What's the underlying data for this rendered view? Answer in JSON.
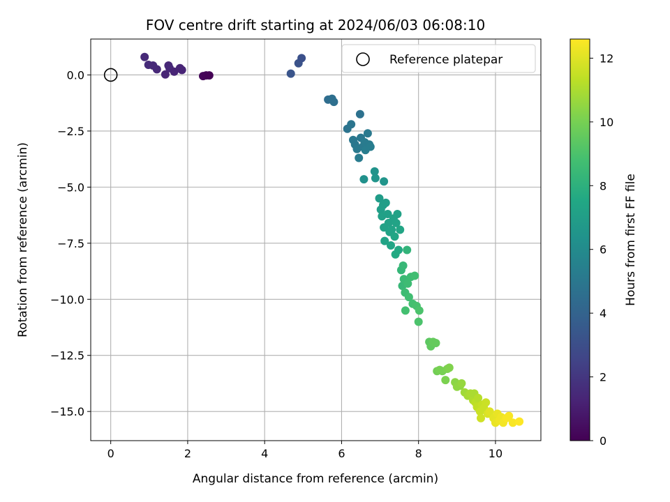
{
  "chart_data": {
    "type": "scatter",
    "title": "FOV centre drift starting at 2024/06/03 06:08:10",
    "xlabel": "Angular distance from reference (arcmin)",
    "ylabel": "Rotation from reference (arcmin)",
    "xlim": [
      -0.52,
      11.18
    ],
    "ylim": [
      -16.3,
      1.6
    ],
    "xticks": [
      0,
      2,
      4,
      6,
      8,
      10
    ],
    "xtick_labels": [
      "0",
      "2",
      "4",
      "6",
      "8",
      "10"
    ],
    "yticks": [
      0.0,
      -2.5,
      -5.0,
      -7.5,
      -10.0,
      -12.5,
      -15.0
    ],
    "ytick_labels": [
      "0.0",
      "−2.5",
      "−5.0",
      "−7.5",
      "−10.0",
      "−12.5",
      "−15.0"
    ],
    "grid": true,
    "legend": {
      "placement": "top-right",
      "entries": [
        "Reference platepar"
      ]
    },
    "colorbar": {
      "label": "Hours from first FF file",
      "colormap": "viridis",
      "range": [
        0,
        12.6
      ],
      "ticks": [
        0,
        2,
        4,
        6,
        8,
        10,
        12
      ],
      "tick_labels": [
        "0",
        "2",
        "4",
        "6",
        "8",
        "10",
        "12"
      ]
    },
    "reference_point": {
      "name": "Reference platepar",
      "x": 0,
      "y": 0
    },
    "series": [
      {
        "points": [
          [
            0.88,
            0.8,
            1.5
          ],
          [
            0.98,
            0.45,
            1.55
          ],
          [
            1.1,
            0.42,
            1.5
          ],
          [
            1.2,
            0.25,
            1.45
          ],
          [
            1.42,
            0.02,
            1.35
          ],
          [
            1.5,
            0.42,
            1.4
          ],
          [
            1.53,
            0.3,
            1.45
          ],
          [
            1.65,
            0.15,
            1.3
          ],
          [
            1.8,
            0.3,
            1.3
          ],
          [
            1.85,
            0.22,
            1.3
          ],
          [
            2.4,
            -0.05,
            0.2
          ],
          [
            2.48,
            -0.02,
            0.1
          ],
          [
            2.56,
            -0.02,
            0.05
          ],
          [
            4.68,
            0.06,
            3.3
          ],
          [
            4.88,
            0.52,
            3.2
          ],
          [
            4.96,
            0.75,
            3.1
          ],
          [
            5.65,
            -1.1,
            4.5
          ],
          [
            5.75,
            -1.06,
            4.6
          ],
          [
            5.8,
            -1.2,
            4.6
          ],
          [
            6.15,
            -2.4,
            4.8
          ],
          [
            6.25,
            -2.2,
            4.9
          ],
          [
            6.3,
            -2.9,
            5.0
          ],
          [
            6.35,
            -3.1,
            5.0
          ],
          [
            6.4,
            -3.3,
            5.1
          ],
          [
            6.45,
            -3.7,
            5.2
          ],
          [
            6.48,
            -1.75,
            4.7
          ],
          [
            6.5,
            -2.8,
            5.0
          ],
          [
            6.55,
            -3.2,
            5.1
          ],
          [
            6.6,
            -3.0,
            5.2
          ],
          [
            6.62,
            -3.35,
            5.3
          ],
          [
            6.68,
            -2.6,
            5.1
          ],
          [
            6.72,
            -3.1,
            5.2
          ],
          [
            6.75,
            -3.2,
            5.3
          ],
          [
            6.58,
            -4.65,
            6.3
          ],
          [
            6.86,
            -4.3,
            6.4
          ],
          [
            6.88,
            -4.6,
            6.5
          ],
          [
            7.1,
            -4.75,
            6.5
          ],
          [
            6.98,
            -5.5,
            6.9
          ],
          [
            7.02,
            -6.0,
            7.0
          ],
          [
            7.05,
            -6.3,
            7.1
          ],
          [
            7.08,
            -5.8,
            7.0
          ],
          [
            7.1,
            -6.8,
            7.2
          ],
          [
            7.12,
            -7.4,
            7.3
          ],
          [
            7.15,
            -5.7,
            7.0
          ],
          [
            7.2,
            -6.2,
            7.1
          ],
          [
            7.22,
            -6.6,
            7.2
          ],
          [
            7.25,
            -7.0,
            7.3
          ],
          [
            7.28,
            -7.6,
            7.4
          ],
          [
            7.3,
            -6.9,
            7.3
          ],
          [
            7.35,
            -6.4,
            7.2
          ],
          [
            7.38,
            -7.2,
            7.4
          ],
          [
            7.4,
            -8.0,
            7.6
          ],
          [
            7.42,
            -6.6,
            7.3
          ],
          [
            7.45,
            -6.2,
            7.2
          ],
          [
            7.48,
            -7.8,
            7.6
          ],
          [
            7.52,
            -6.9,
            7.4
          ],
          [
            7.55,
            -8.7,
            8.3
          ],
          [
            7.58,
            -9.4,
            8.4
          ],
          [
            7.6,
            -8.5,
            8.4
          ],
          [
            7.62,
            -9.1,
            8.5
          ],
          [
            7.65,
            -9.7,
            8.6
          ],
          [
            7.66,
            -10.5,
            8.8
          ],
          [
            7.7,
            -7.8,
            8.2
          ],
          [
            7.72,
            -9.3,
            8.6
          ],
          [
            7.75,
            -9.9,
            8.7
          ],
          [
            7.8,
            -9.0,
            8.6
          ],
          [
            7.85,
            -10.2,
            8.8
          ],
          [
            7.9,
            -8.95,
            8.7
          ],
          [
            7.95,
            -10.3,
            8.9
          ],
          [
            8.0,
            -11.0,
            9.0
          ],
          [
            8.02,
            -10.5,
            9.0
          ],
          [
            8.28,
            -11.9,
            9.4
          ],
          [
            8.32,
            -12.1,
            9.5
          ],
          [
            8.38,
            -11.9,
            9.6
          ],
          [
            8.45,
            -11.95,
            9.6
          ],
          [
            8.48,
            -13.2,
            9.9
          ],
          [
            8.55,
            -13.15,
            10.0
          ],
          [
            8.62,
            -13.2,
            10.0
          ],
          [
            8.7,
            -13.6,
            10.1
          ],
          [
            8.75,
            -13.1,
            10.1
          ],
          [
            8.8,
            -13.05,
            10.2
          ],
          [
            8.95,
            -13.7,
            10.4
          ],
          [
            9.0,
            -13.9,
            10.5
          ],
          [
            9.08,
            -13.85,
            10.5
          ],
          [
            9.12,
            -13.75,
            10.6
          ],
          [
            9.2,
            -14.15,
            10.8
          ],
          [
            9.28,
            -14.3,
            10.9
          ],
          [
            9.35,
            -14.2,
            11.0
          ],
          [
            9.42,
            -14.5,
            11.1
          ],
          [
            9.45,
            -14.2,
            11.0
          ],
          [
            9.48,
            -14.6,
            11.3
          ],
          [
            9.52,
            -14.8,
            11.4
          ],
          [
            9.55,
            -14.4,
            11.2
          ],
          [
            9.6,
            -15.0,
            11.6
          ],
          [
            9.62,
            -15.3,
            11.7
          ],
          [
            9.65,
            -14.7,
            11.5
          ],
          [
            9.7,
            -14.85,
            11.6
          ],
          [
            9.75,
            -14.6,
            11.6
          ],
          [
            9.8,
            -15.1,
            11.9
          ],
          [
            9.85,
            -15.0,
            12.0
          ],
          [
            9.95,
            -15.3,
            12.1
          ],
          [
            10.0,
            -15.5,
            12.2
          ],
          [
            10.05,
            -15.1,
            12.2
          ],
          [
            10.1,
            -15.4,
            12.3
          ],
          [
            10.15,
            -15.25,
            12.3
          ],
          [
            10.2,
            -15.5,
            12.4
          ],
          [
            10.28,
            -15.3,
            12.5
          ],
          [
            10.35,
            -15.2,
            12.5
          ],
          [
            10.45,
            -15.5,
            12.5
          ],
          [
            10.62,
            -15.45,
            12.6
          ]
        ]
      }
    ]
  }
}
